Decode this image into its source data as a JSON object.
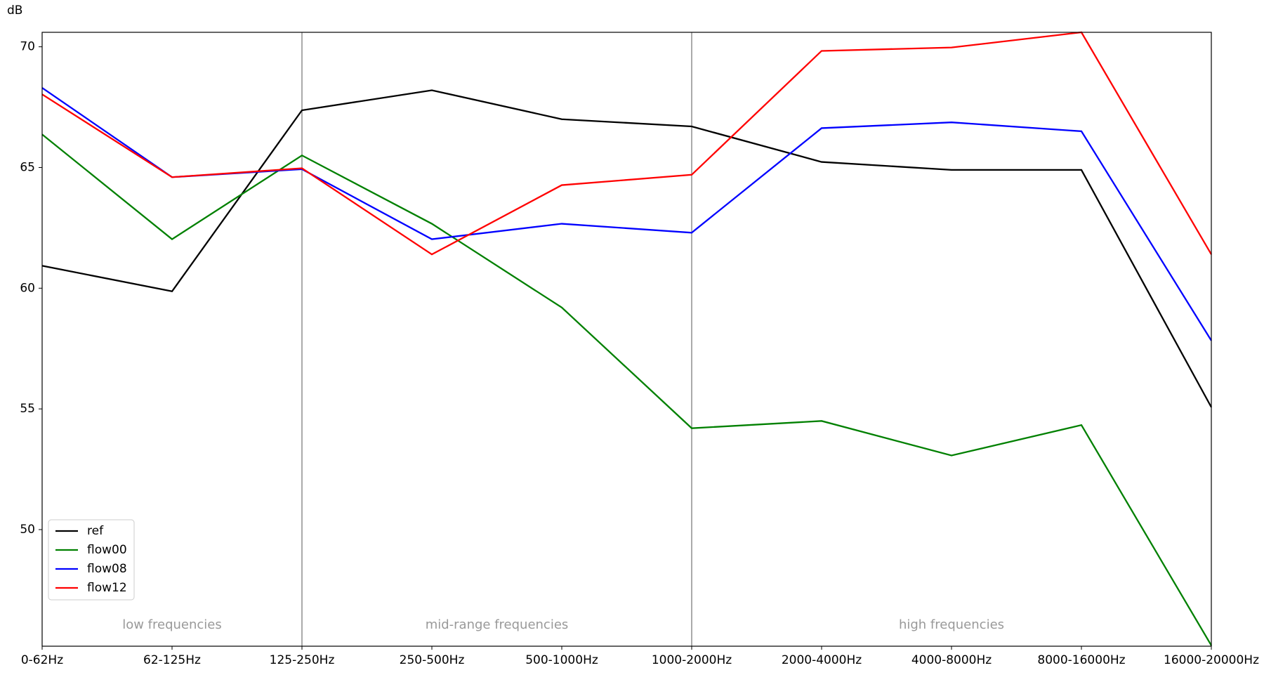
{
  "chart_data": {
    "type": "line",
    "y_label": "dB",
    "categories": [
      "0-62Hz",
      "62-125Hz",
      "125-250Hz",
      "250-500Hz",
      "500-1000Hz",
      "1000-2000Hz",
      "2000-4000Hz",
      "4000-8000Hz",
      "8000-16000Hz",
      "16000-20000Hz"
    ],
    "series": [
      {
        "name": "ref",
        "color": "#000000",
        "values": [
          60.93,
          59.87,
          67.37,
          68.2,
          67.0,
          66.7,
          65.23,
          64.9,
          64.9,
          55.07
        ]
      },
      {
        "name": "flow00",
        "color": "#008000",
        "values": [
          66.37,
          62.03,
          65.5,
          62.67,
          59.2,
          54.2,
          54.5,
          53.07,
          54.33,
          45.2
        ]
      },
      {
        "name": "flow08",
        "color": "#0000ff",
        "values": [
          68.3,
          64.6,
          64.93,
          62.03,
          62.67,
          62.3,
          66.63,
          66.87,
          66.5,
          57.83
        ]
      },
      {
        "name": "flow12",
        "color": "#ff0000",
        "values": [
          68.03,
          64.6,
          64.97,
          61.4,
          64.27,
          64.7,
          69.83,
          69.97,
          70.6,
          61.4
        ]
      }
    ],
    "regions": [
      {
        "label": "low frequencies",
        "start": 0,
        "end": 2
      },
      {
        "label": "mid-range frequencies",
        "start": 2,
        "end": 5
      },
      {
        "label": "high frequencies",
        "start": 5,
        "end": 9
      }
    ],
    "ylim": [
      45.17,
      70.6
    ],
    "yticks": [
      50,
      55,
      60,
      65,
      70
    ],
    "legend": "lower left"
  }
}
